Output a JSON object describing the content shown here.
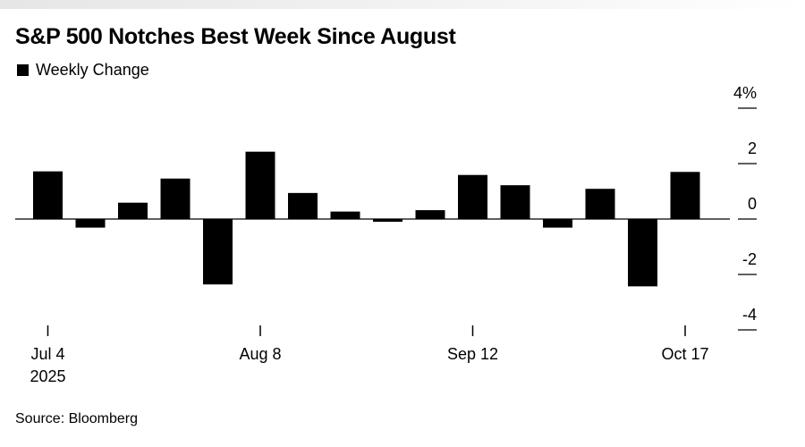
{
  "title": "S&P 500 Notches Best Week Since August",
  "legend": "Weekly Change",
  "source": "Source: Bloomberg",
  "chart_data": {
    "type": "bar",
    "title": "S&P 500 Notches Best Week Since August",
    "categories": [
      "2025-07-04",
      "2025-07-11",
      "2025-07-18",
      "2025-07-25",
      "2025-08-01",
      "2025-08-08",
      "2025-08-15",
      "2025-08-22",
      "2025-08-29",
      "2025-09-05",
      "2025-09-12",
      "2025-09-19",
      "2025-09-26",
      "2025-10-03",
      "2025-10-10",
      "2025-10-17"
    ],
    "series": [
      {
        "name": "Weekly Change",
        "values": [
          1.72,
          -0.31,
          0.59,
          1.46,
          -2.36,
          2.43,
          0.94,
          0.27,
          -0.1,
          0.32,
          1.59,
          1.22,
          -0.31,
          1.09,
          -2.43,
          1.7
        ]
      }
    ],
    "ylim": [
      -4,
      4
    ],
    "yticks": [
      {
        "value": 4,
        "label": "4%"
      },
      {
        "value": 2,
        "label": "2"
      },
      {
        "value": 0,
        "label": "0"
      },
      {
        "value": -2,
        "label": "-2"
      },
      {
        "value": -4,
        "label": "-4"
      }
    ],
    "xticks": [
      {
        "index": 0,
        "label": "Jul 4",
        "sublabel": "2025"
      },
      {
        "index": 5,
        "label": "Aug 8"
      },
      {
        "index": 10,
        "label": "Sep 12"
      },
      {
        "index": 15,
        "label": "Oct 17"
      }
    ],
    "y_axis_position": "right",
    "grid": false,
    "legend_position": "top-left",
    "bar_color": "#000000"
  }
}
